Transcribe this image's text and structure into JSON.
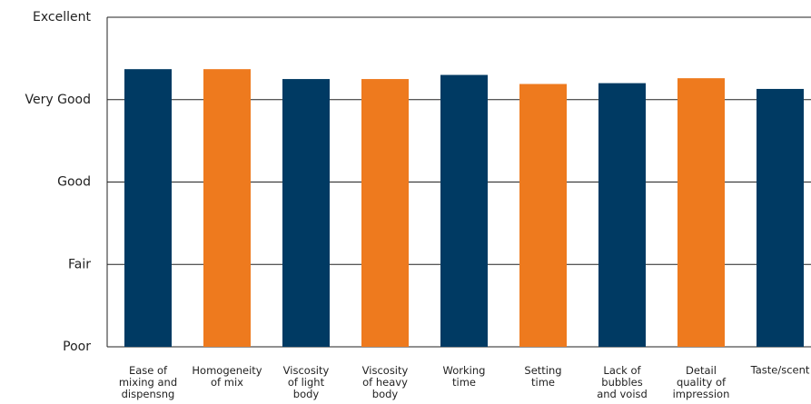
{
  "chart_data": {
    "type": "bar",
    "categories": [
      "Ease of\nmixing and\ndispensng",
      "Homogeneity\nof mix",
      "Viscosity\nof light\nbody",
      "Viscosity\nof heavy\nbody",
      "Working\ntime",
      "Setting\ntime",
      "Lack of\nbubbles\nand voisd",
      "Detail\nquality of\nimpression",
      "Taste/scent"
    ],
    "values": [
      4.37,
      4.37,
      4.25,
      4.25,
      4.3,
      4.19,
      4.2,
      4.26,
      4.13
    ],
    "colors": [
      "#003a63",
      "#ee7a1e",
      "#003a63",
      "#ee7a1e",
      "#003a63",
      "#ee7a1e",
      "#003a63",
      "#ee7a1e",
      "#003a63"
    ],
    "ylim": [
      1,
      5
    ],
    "yticks": [
      {
        "value": 1,
        "label": "Poor"
      },
      {
        "value": 2,
        "label": "Fair"
      },
      {
        "value": 3,
        "label": "Good"
      },
      {
        "value": 4,
        "label": "Very Good"
      },
      {
        "value": 5,
        "label": "Excellent"
      }
    ],
    "grid": true
  }
}
